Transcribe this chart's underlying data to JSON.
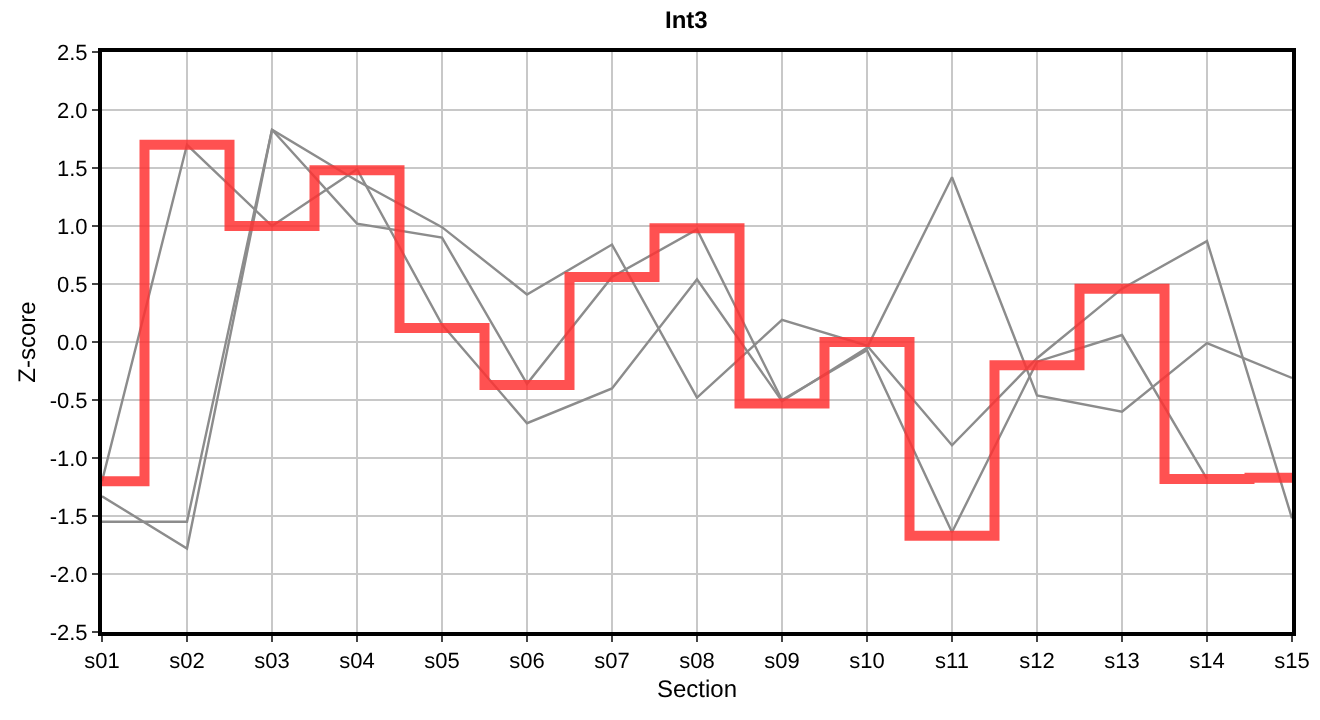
{
  "chart_data": {
    "type": "line",
    "title": "Int3",
    "xlabel": "Section",
    "ylabel": "Z-score",
    "categories": [
      "s01",
      "s02",
      "s03",
      "s04",
      "s05",
      "s06",
      "s07",
      "s08",
      "s09",
      "s10",
      "s11",
      "s12",
      "s13",
      "s14",
      "s15"
    ],
    "series": [
      {
        "type": "line",
        "color": "#8c8c8c",
        "values": [
          -1.2,
          1.7,
          1.0,
          1.49,
          0.15,
          -0.7,
          -0.4,
          0.54,
          -0.51,
          -0.05,
          1.42,
          -0.46,
          -0.6,
          -0.01,
          -0.31
        ]
      },
      {
        "type": "line",
        "color": "#8c8c8c",
        "values": [
          -1.33,
          -1.78,
          1.83,
          1.39,
          0.99,
          0.41,
          0.84,
          -0.48,
          0.19,
          -0.03,
          -0.89,
          -0.14,
          0.46,
          0.87,
          -1.52
        ]
      },
      {
        "type": "line",
        "color": "#8c8c8c",
        "values": [
          -1.55,
          -1.55,
          1.83,
          1.02,
          0.9,
          -0.36,
          0.56,
          0.97,
          -0.5,
          -0.07,
          -1.64,
          -0.17,
          0.06,
          -1.18,
          null
        ]
      },
      {
        "type": "step",
        "color": "#ff3333",
        "values": [
          -1.2,
          1.7,
          1.0,
          1.48,
          0.12,
          -0.37,
          0.56,
          0.98,
          -0.53,
          0.0,
          -1.67,
          -0.2,
          0.46,
          -1.18,
          -1.17
        ]
      }
    ],
    "ylim": [
      -2.5,
      2.5
    ],
    "yticks": [
      -2.5,
      {
        "value": -2,
        "label": "-2.0"
      },
      -1.5,
      {
        "value": -1,
        "label": "-1.0"
      },
      -0.5,
      {
        "value": 0,
        "label": "0.0"
      },
      0.5,
      {
        "value": 1,
        "label": "1.0"
      },
      1.5,
      {
        "value": 2,
        "label": "2.0"
      },
      2.5
    ],
    "grid": true,
    "marker": "none",
    "line_style": "solid"
  }
}
